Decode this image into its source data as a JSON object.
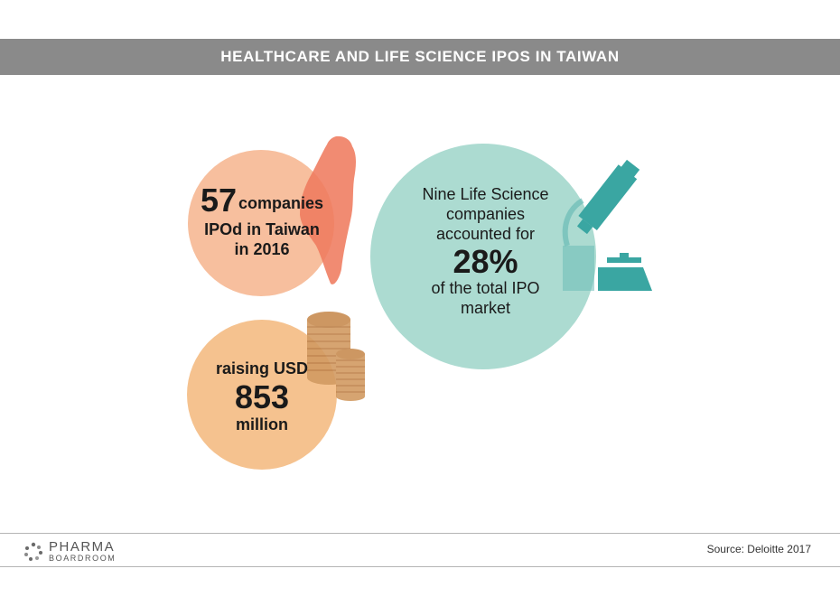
{
  "title": "HEALTHCARE AND LIFE SCIENCE IPOS IN TAIWAN",
  "stat_companies": {
    "number": "57",
    "line1": "companies",
    "line2": "IPOd in Taiwan",
    "line3": "in 2016"
  },
  "stat_life_science": {
    "line1": "Nine Life Science",
    "line2": "companies",
    "line3": "accounted for",
    "percent": "28%",
    "line4": "of the total IPO",
    "line5": "market"
  },
  "stat_raised": {
    "line1": "raising USD",
    "number": "853",
    "line2": "million"
  },
  "footer": {
    "logo_line1": "PHARMA",
    "logo_line2": "BOARDROOM",
    "source": "Source:  Deloitte 2017"
  },
  "colors": {
    "title_bar": "#8a8a8a",
    "circle_companies": "#f7bf9e",
    "taiwan_map": "#ef7b5e",
    "circle_life_science": "#acdbd1",
    "microscope": "#3aa6a2",
    "circle_raised": "#f5c28f",
    "coins": "#d29b62"
  },
  "icons": [
    "taiwan-map-icon",
    "microscope-icon",
    "coins-icon",
    "pharma-boardroom-logo-icon"
  ]
}
